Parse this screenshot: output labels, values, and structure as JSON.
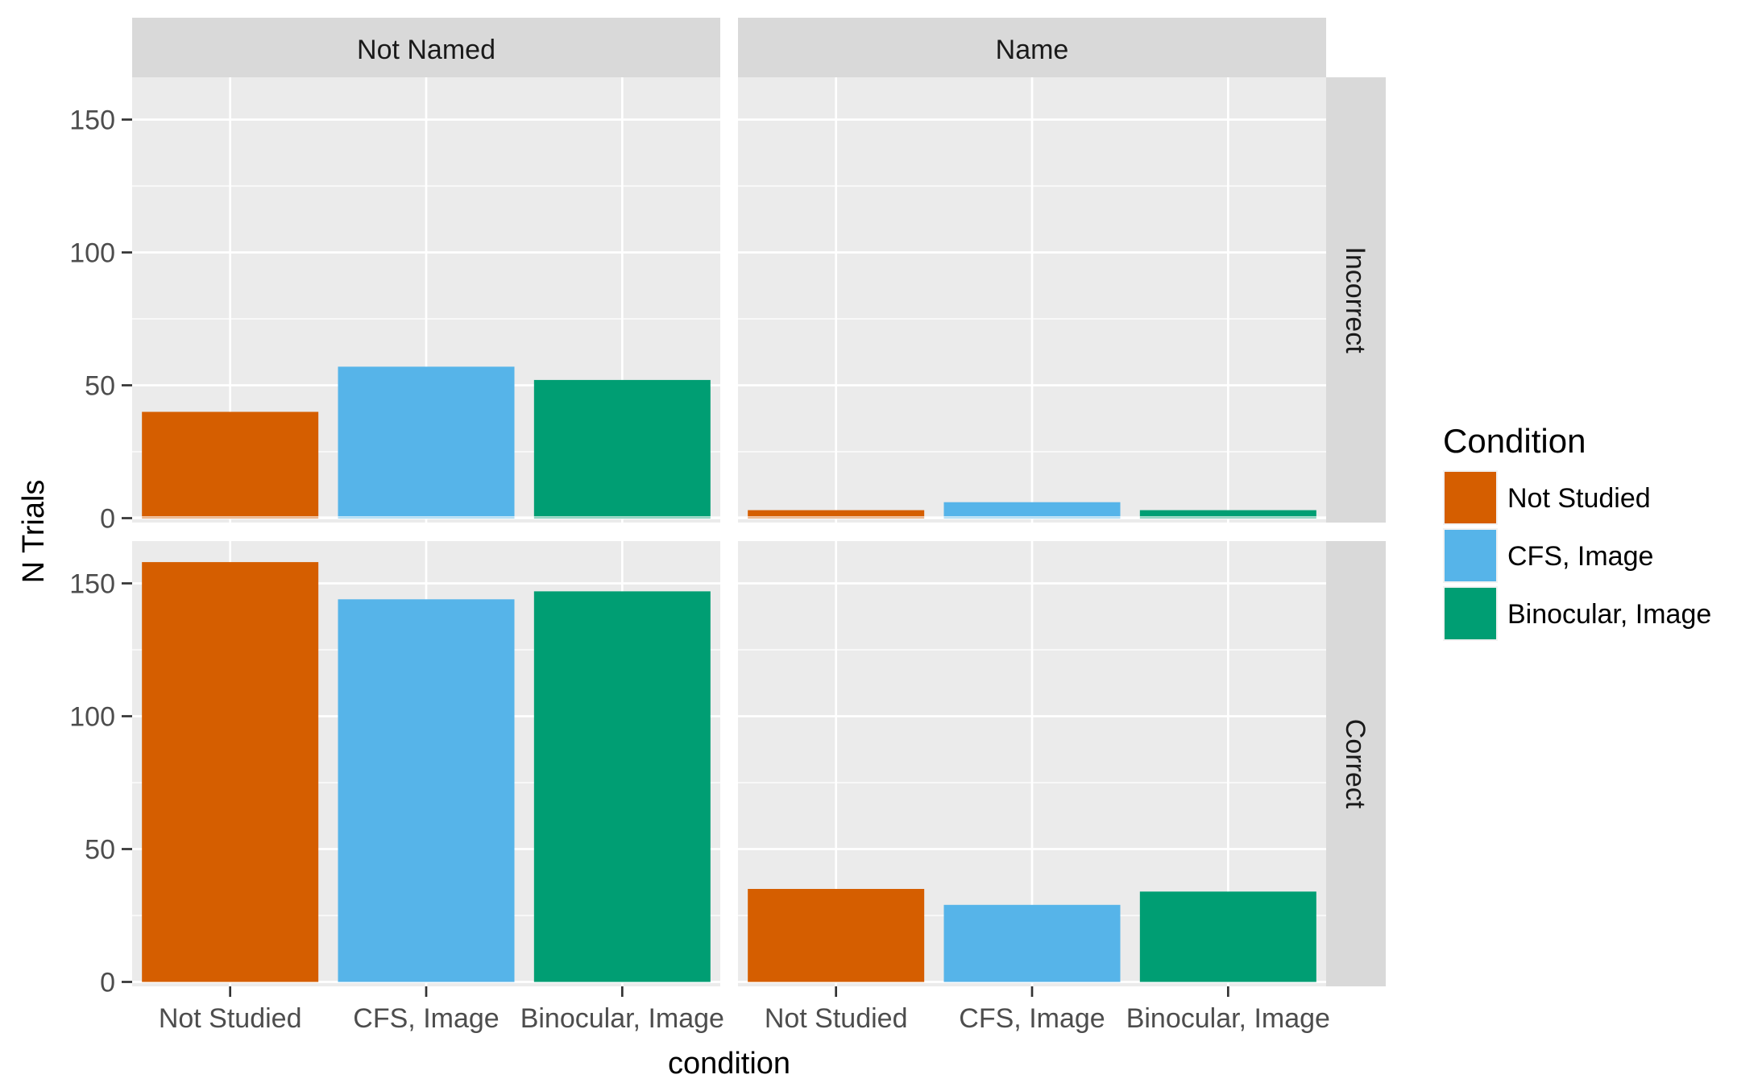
{
  "chart_data": {
    "type": "bar",
    "categories": [
      "Not Studied",
      "CFS, Image",
      "Binocular, Image"
    ],
    "xlabel": "condition",
    "ylabel": "N Trials",
    "ylim": [
      0,
      170
    ],
    "yticks": [
      0,
      50,
      100,
      150
    ],
    "grid": true,
    "legend": {
      "title": "Condition",
      "placement": "right",
      "entries": [
        "Not Studied",
        "CFS, Image",
        "Binocular, Image"
      ]
    },
    "colors": [
      "#D55E00",
      "#56B4E9",
      "#009E73"
    ],
    "facet_columns": [
      "Not Named",
      "Name"
    ],
    "facet_rows": [
      "Incorrect",
      "Correct"
    ],
    "panels": [
      {
        "column": "Not Named",
        "row": "Incorrect",
        "values": [
          40,
          57,
          52
        ]
      },
      {
        "column": "Name",
        "row": "Incorrect",
        "values": [
          3,
          6,
          3
        ]
      },
      {
        "column": "Not Named",
        "row": "Correct",
        "values": [
          158,
          144,
          147
        ]
      },
      {
        "column": "Name",
        "row": "Correct",
        "values": [
          35,
          29,
          34
        ]
      }
    ]
  }
}
